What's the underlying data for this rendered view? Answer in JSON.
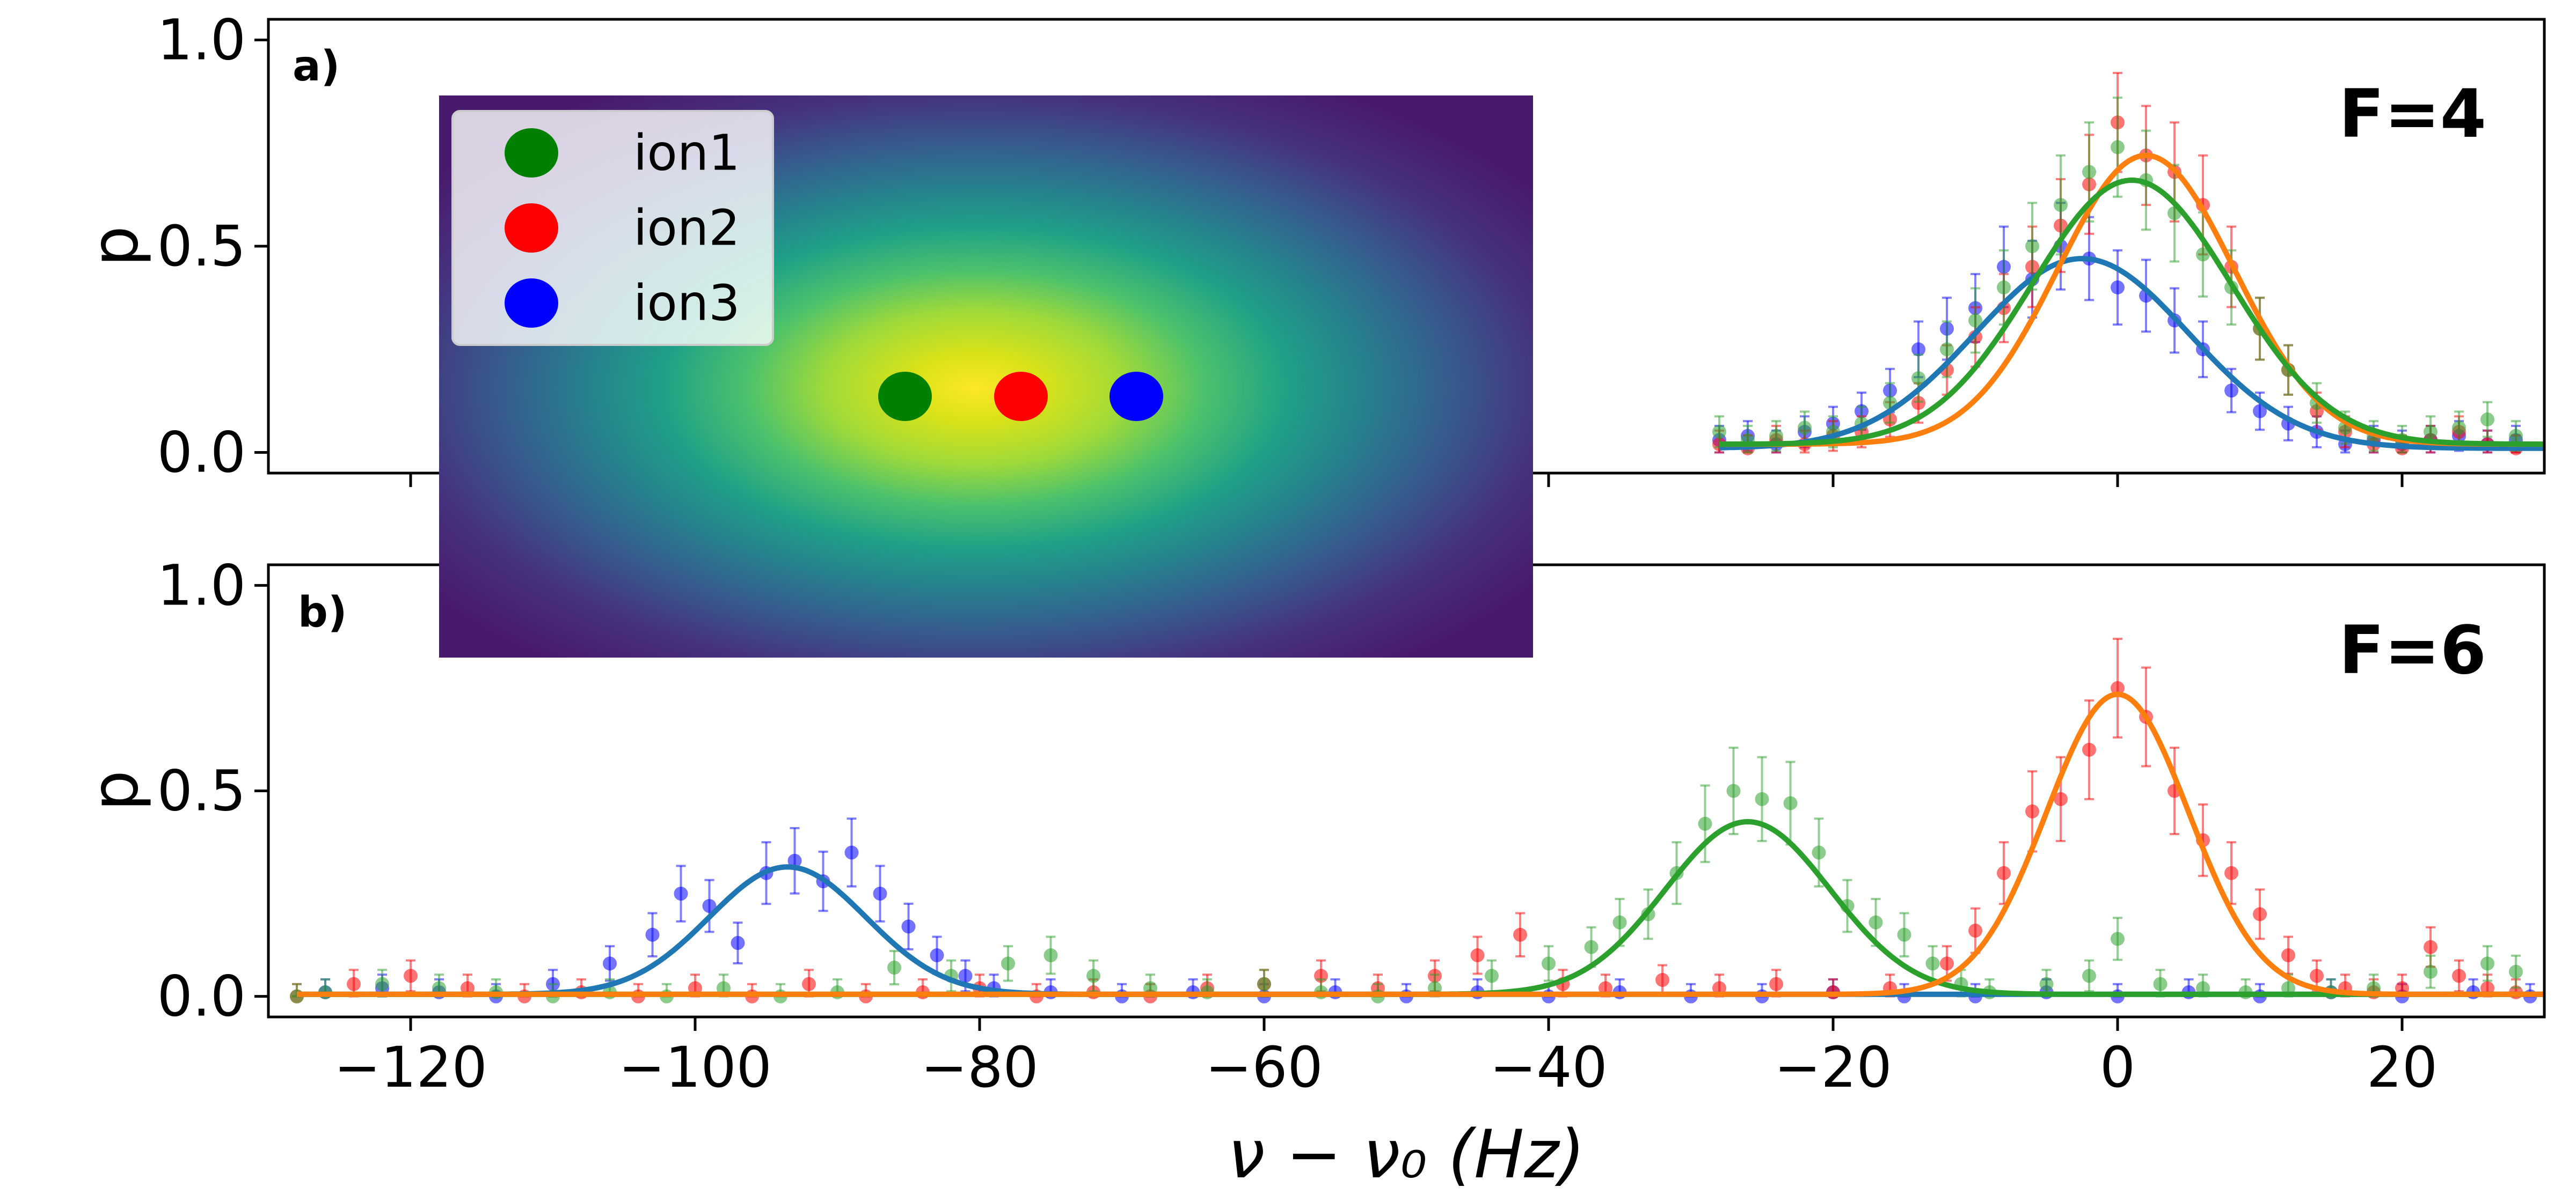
{
  "chart_data": [
    {
      "type": "scatter",
      "panel_label": "a)",
      "annotation": "F=4",
      "ylabel": "p",
      "xlim": [
        -130,
        30
      ],
      "ylim": [
        -0.05,
        1.05
      ],
      "yticks": [
        0.0,
        0.5,
        1.0
      ],
      "ytick_labels": [
        "0.0",
        "0.5",
        "1.0"
      ],
      "xticks": [
        -120,
        -100,
        -80,
        -60,
        -40,
        -20,
        0,
        20
      ],
      "series": [
        {
          "color": "#1f77b4",
          "fit": {
            "amp": 0.46,
            "center": -2.5,
            "sigma": 7.5,
            "offset": 0.01,
            "x_range": [
              -28,
              30
            ]
          }
        },
        {
          "color": "#ff7f0e",
          "fit": {
            "amp": 0.7,
            "center": 2,
            "sigma": 6.2,
            "offset": 0.02,
            "x_range": [
              -28,
              30
            ]
          }
        },
        {
          "color": "#2ca02c",
          "fit": {
            "amp": 0.64,
            "center": 1,
            "sigma": 7.0,
            "offset": 0.02,
            "x_range": [
              -28,
              30
            ]
          }
        }
      ],
      "scatter": [
        {
          "color": "#0000ff",
          "points": [
            [
              -28,
              0.03
            ],
            [
              -26,
              0.04
            ],
            [
              -24,
              0.02
            ],
            [
              -22,
              0.05
            ],
            [
              -20,
              0.07
            ],
            [
              -18,
              0.1
            ],
            [
              -16,
              0.15
            ],
            [
              -14,
              0.25
            ],
            [
              -12,
              0.3
            ],
            [
              -10,
              0.35
            ],
            [
              -8,
              0.45
            ],
            [
              -6,
              0.42
            ],
            [
              -4,
              0.5
            ],
            [
              -2,
              0.47
            ],
            [
              0,
              0.4
            ],
            [
              2,
              0.38
            ],
            [
              4,
              0.32
            ],
            [
              6,
              0.25
            ],
            [
              8,
              0.15
            ],
            [
              10,
              0.1
            ],
            [
              12,
              0.07
            ],
            [
              14,
              0.05
            ],
            [
              16,
              0.02
            ],
            [
              18,
              0.03
            ],
            [
              20,
              0.02
            ],
            [
              22,
              0.03
            ],
            [
              24,
              0.04
            ],
            [
              26,
              0.02
            ],
            [
              28,
              0.03
            ]
          ]
        },
        {
          "color": "#ff0000",
          "points": [
            [
              -28,
              0.02
            ],
            [
              -26,
              0.01
            ],
            [
              -24,
              0.03
            ],
            [
              -22,
              0.02
            ],
            [
              -20,
              0.04
            ],
            [
              -18,
              0.05
            ],
            [
              -16,
              0.08
            ],
            [
              -14,
              0.12
            ],
            [
              -12,
              0.2
            ],
            [
              -10,
              0.28
            ],
            [
              -8,
              0.35
            ],
            [
              -6,
              0.45
            ],
            [
              -4,
              0.55
            ],
            [
              -2,
              0.65
            ],
            [
              0,
              0.8
            ],
            [
              2,
              0.72
            ],
            [
              4,
              0.68
            ],
            [
              6,
              0.6
            ],
            [
              8,
              0.45
            ],
            [
              10,
              0.3
            ],
            [
              12,
              0.2
            ],
            [
              14,
              0.1
            ],
            [
              16,
              0.05
            ],
            [
              18,
              0.02
            ],
            [
              20,
              0.01
            ],
            [
              22,
              0.03
            ],
            [
              24,
              0.05
            ],
            [
              26,
              0.02
            ],
            [
              28,
              0.01
            ]
          ]
        },
        {
          "color": "#2ca02c",
          "points": [
            [
              -28,
              0.05
            ],
            [
              -26,
              0.03
            ],
            [
              -24,
              0.04
            ],
            [
              -22,
              0.06
            ],
            [
              -20,
              0.05
            ],
            [
              -18,
              0.07
            ],
            [
              -16,
              0.12
            ],
            [
              -14,
              0.18
            ],
            [
              -12,
              0.25
            ],
            [
              -10,
              0.32
            ],
            [
              -8,
              0.4
            ],
            [
              -6,
              0.5
            ],
            [
              -4,
              0.6
            ],
            [
              -2,
              0.68
            ],
            [
              0,
              0.74
            ],
            [
              2,
              0.66
            ],
            [
              4,
              0.58
            ],
            [
              6,
              0.48
            ],
            [
              8,
              0.4
            ],
            [
              10,
              0.3
            ],
            [
              12,
              0.2
            ],
            [
              14,
              0.12
            ],
            [
              16,
              0.06
            ],
            [
              18,
              0.04
            ],
            [
              20,
              0.03
            ],
            [
              22,
              0.05
            ],
            [
              24,
              0.06
            ],
            [
              26,
              0.08
            ],
            [
              28,
              0.04
            ]
          ]
        }
      ]
    },
    {
      "type": "scatter",
      "panel_label": "b)",
      "annotation": "F=6",
      "xlabel": "ν − ν₀ (Hz)",
      "ylabel": "p",
      "xlim": [
        -130,
        30
      ],
      "ylim": [
        -0.05,
        1.05
      ],
      "yticks": [
        0.0,
        0.5,
        1.0
      ],
      "ytick_labels": [
        "0.0",
        "0.5",
        "1.0"
      ],
      "xticks": [
        -120,
        -100,
        -80,
        -60,
        -40,
        -20,
        0,
        20
      ],
      "xtick_labels": [
        "−120",
        "−100",
        "−80",
        "−60",
        "−40",
        "−20",
        "0",
        "20"
      ],
      "series": [
        {
          "color": "#1f77b4",
          "fit": {
            "amp": 0.31,
            "center": -93.5,
            "sigma": 5.5,
            "offset": 0.005,
            "x_range": [
              -128,
              30
            ]
          }
        },
        {
          "color": "#2ca02c",
          "fit": {
            "amp": 0.42,
            "center": -26,
            "sigma": 5.8,
            "offset": 0.005,
            "x_range": [
              -128,
              30
            ]
          }
        },
        {
          "color": "#ff7f0e",
          "fit": {
            "amp": 0.73,
            "center": 0,
            "sigma": 5.0,
            "offset": 0.005,
            "x_range": [
              -128,
              30
            ]
          }
        }
      ],
      "scatter": [
        {
          "color": "#0000ff",
          "points": [
            [
              -126,
              0.01
            ],
            [
              -122,
              0.02
            ],
            [
              -118,
              0.01
            ],
            [
              -114,
              0.0
            ],
            [
              -110,
              0.03
            ],
            [
              -106,
              0.08
            ],
            [
              -103,
              0.15
            ],
            [
              -101,
              0.25
            ],
            [
              -99,
              0.22
            ],
            [
              -97,
              0.13
            ],
            [
              -95,
              0.3
            ],
            [
              -93,
              0.33
            ],
            [
              -91,
              0.28
            ],
            [
              -89,
              0.35
            ],
            [
              -87,
              0.25
            ],
            [
              -85,
              0.17
            ],
            [
              -83,
              0.1
            ],
            [
              -81,
              0.05
            ],
            [
              -79,
              0.02
            ],
            [
              -75,
              0.01
            ],
            [
              -70,
              0.0
            ],
            [
              -65,
              0.01
            ],
            [
              -60,
              0.0
            ],
            [
              -55,
              0.01
            ],
            [
              -50,
              0.0
            ],
            [
              -45,
              0.01
            ],
            [
              -40,
              0.0
            ],
            [
              -35,
              0.01
            ],
            [
              -30,
              0.0
            ],
            [
              -25,
              0.0
            ],
            [
              -20,
              0.01
            ],
            [
              -15,
              0.0
            ],
            [
              -10,
              0.0
            ],
            [
              -5,
              0.01
            ],
            [
              0,
              0.0
            ],
            [
              5,
              0.01
            ],
            [
              10,
              0.0
            ],
            [
              15,
              0.01
            ],
            [
              20,
              0.0
            ],
            [
              25,
              0.01
            ],
            [
              29,
              0.0
            ]
          ]
        },
        {
          "color": "#ff0000",
          "points": [
            [
              -128,
              0.0
            ],
            [
              -124,
              0.03
            ],
            [
              -120,
              0.05
            ],
            [
              -116,
              0.02
            ],
            [
              -112,
              0.0
            ],
            [
              -108,
              0.01
            ],
            [
              -104,
              0.0
            ],
            [
              -100,
              0.02
            ],
            [
              -96,
              0.0
            ],
            [
              -92,
              0.03
            ],
            [
              -88,
              0.0
            ],
            [
              -84,
              0.01
            ],
            [
              -80,
              0.02
            ],
            [
              -76,
              0.0
            ],
            [
              -72,
              0.01
            ],
            [
              -68,
              0.0
            ],
            [
              -64,
              0.02
            ],
            [
              -60,
              0.03
            ],
            [
              -56,
              0.05
            ],
            [
              -52,
              0.02
            ],
            [
              -48,
              0.05
            ],
            [
              -45,
              0.1
            ],
            [
              -42,
              0.15
            ],
            [
              -39,
              0.03
            ],
            [
              -36,
              0.02
            ],
            [
              -32,
              0.04
            ],
            [
              -28,
              0.02
            ],
            [
              -24,
              0.03
            ],
            [
              -20,
              0.01
            ],
            [
              -16,
              0.02
            ],
            [
              -12,
              0.08
            ],
            [
              -10,
              0.16
            ],
            [
              -8,
              0.3
            ],
            [
              -6,
              0.45
            ],
            [
              -4,
              0.48
            ],
            [
              -2,
              0.6
            ],
            [
              0,
              0.75
            ],
            [
              2,
              0.68
            ],
            [
              4,
              0.5
            ],
            [
              6,
              0.38
            ],
            [
              8,
              0.3
            ],
            [
              10,
              0.2
            ],
            [
              12,
              0.1
            ],
            [
              14,
              0.05
            ],
            [
              16,
              0.02
            ],
            [
              18,
              0.01
            ],
            [
              20,
              0.02
            ],
            [
              22,
              0.12
            ],
            [
              24,
              0.05
            ],
            [
              26,
              0.02
            ],
            [
              28,
              0.01
            ]
          ]
        },
        {
          "color": "#2ca02c",
          "points": [
            [
              -128,
              0.0
            ],
            [
              -126,
              0.01
            ],
            [
              -122,
              0.03
            ],
            [
              -118,
              0.02
            ],
            [
              -114,
              0.01
            ],
            [
              -110,
              0.0
            ],
            [
              -106,
              0.01
            ],
            [
              -102,
              0.0
            ],
            [
              -98,
              0.02
            ],
            [
              -94,
              0.0
            ],
            [
              -90,
              0.01
            ],
            [
              -86,
              0.07
            ],
            [
              -82,
              0.05
            ],
            [
              -78,
              0.08
            ],
            [
              -75,
              0.1
            ],
            [
              -72,
              0.05
            ],
            [
              -68,
              0.02
            ],
            [
              -64,
              0.01
            ],
            [
              -60,
              0.03
            ],
            [
              -56,
              0.01
            ],
            [
              -52,
              0.0
            ],
            [
              -48,
              0.02
            ],
            [
              -44,
              0.05
            ],
            [
              -40,
              0.08
            ],
            [
              -37,
              0.12
            ],
            [
              -35,
              0.18
            ],
            [
              -33,
              0.2
            ],
            [
              -31,
              0.3
            ],
            [
              -29,
              0.42
            ],
            [
              -27,
              0.5
            ],
            [
              -25,
              0.48
            ],
            [
              -23,
              0.47
            ],
            [
              -21,
              0.35
            ],
            [
              -19,
              0.22
            ],
            [
              -17,
              0.18
            ],
            [
              -15,
              0.15
            ],
            [
              -13,
              0.08
            ],
            [
              -11,
              0.03
            ],
            [
              -9,
              0.01
            ],
            [
              -5,
              0.03
            ],
            [
              -2,
              0.05
            ],
            [
              0,
              0.14
            ],
            [
              3,
              0.03
            ],
            [
              6,
              0.02
            ],
            [
              9,
              0.01
            ],
            [
              12,
              0.02
            ],
            [
              15,
              0.01
            ],
            [
              18,
              0.02
            ],
            [
              22,
              0.06
            ],
            [
              26,
              0.08
            ],
            [
              28,
              0.06
            ]
          ]
        }
      ]
    }
  ],
  "inset": {
    "legend": [
      {
        "label": "ion1",
        "color": "#008000"
      },
      {
        "label": "ion2",
        "color": "#ff0000"
      },
      {
        "label": "ion3",
        "color": "#0000ff"
      }
    ],
    "ions": [
      {
        "label": "ion1",
        "color": "#008000"
      },
      {
        "label": "ion2",
        "color": "#ff0000"
      },
      {
        "label": "ion3",
        "color": "#0000ff"
      }
    ],
    "colormap": [
      "#fde725",
      "#b5de2b",
      "#6ece58",
      "#35b779",
      "#1f9e89",
      "#26828e",
      "#31688e",
      "#3e4989",
      "#482878",
      "#440154"
    ]
  }
}
